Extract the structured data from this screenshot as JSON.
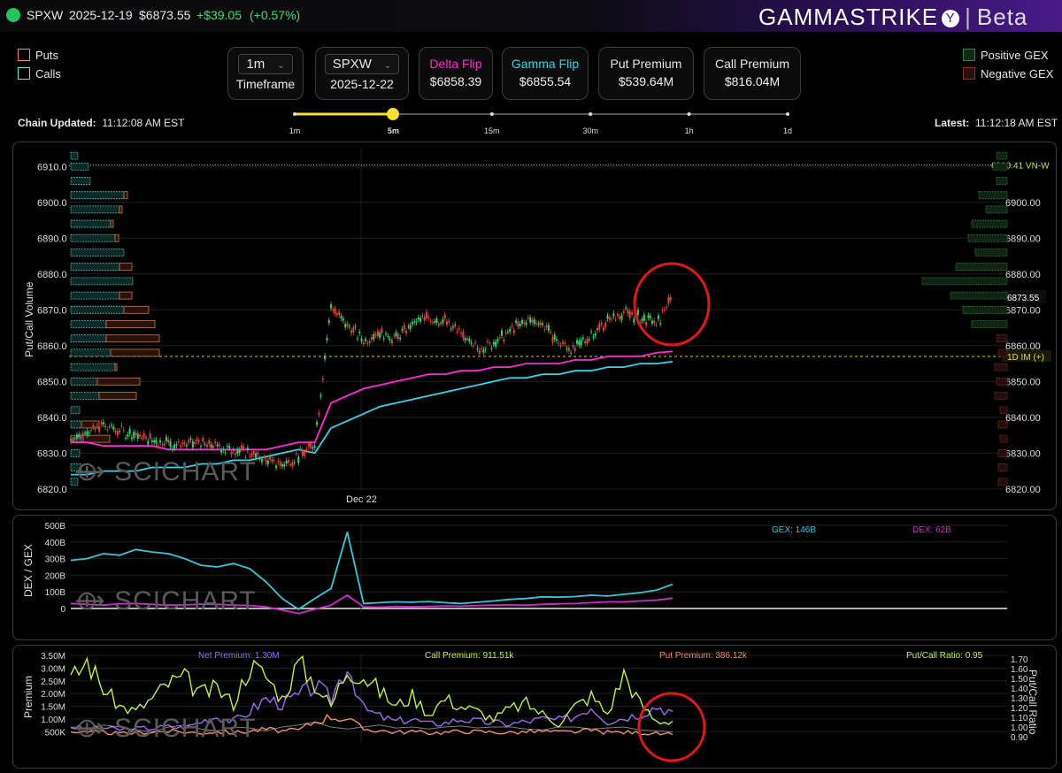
{
  "ticker": {
    "symbol": "SPXW",
    "date": "2025-12-19",
    "price": "$6873.55",
    "change": "+$39.05",
    "change_pct": "(+0.57%)"
  },
  "brand": {
    "name": "GAMMASTRIKE",
    "suffix": "Beta"
  },
  "legend_left": [
    {
      "label": "Puts",
      "color": "#f08a5d"
    },
    {
      "label": "Calls",
      "color": "#7ee0d8"
    }
  ],
  "legend_right": [
    {
      "label": "Positive GEX",
      "color": "#1f6b2a"
    },
    {
      "label": "Negative GEX",
      "color": "#6b1f1f"
    }
  ],
  "controls": {
    "timeframe": {
      "value": "1m",
      "label": "Timeframe"
    },
    "symbol": {
      "value": "SPXW",
      "date": "2025-12-22"
    },
    "delta_flip": {
      "label": "Delta Flip",
      "value": "$6858.39",
      "color": "#ff2bd6"
    },
    "gamma_flip": {
      "label": "Gamma Flip",
      "value": "$6855.54",
      "color": "#37d3e6"
    },
    "put_premium": {
      "label": "Put Premium",
      "value": "$539.64M"
    },
    "call_premium": {
      "label": "Call Premium",
      "value": "$816.04M"
    }
  },
  "chain": {
    "label": "Chain Updated:",
    "time": "11:12:08 AM EST"
  },
  "latest": {
    "label": "Latest:",
    "time": "11:12:18 AM EST"
  },
  "slider": {
    "ticks": [
      "1m",
      "5m",
      "15m",
      "30m",
      "1h",
      "1d"
    ],
    "selected_index": 1,
    "accent": "#f5e033"
  },
  "price_chart": {
    "ylabel": "Put/Call Volume",
    "yticks_left": [
      "6910.0",
      "6900.0",
      "6890.0",
      "6880.0",
      "6870.0",
      "6860.0",
      "6850.0",
      "6840.0",
      "6830.0",
      "6820.0"
    ],
    "yticks_right": [
      "6900.00",
      "6890.00",
      "6880.00",
      "6870.00",
      "6860.00",
      "6850.00",
      "6840.00",
      "6830.00",
      "6820.00"
    ],
    "xtick": "Dec 22",
    "vnw_label": "6910.41 VN-W",
    "price_label": "6873.55",
    "im_label": "1D IM (+)",
    "watermark": "SCICHART"
  },
  "gex_chart": {
    "ylabel": "DEX / GEX",
    "yticks": [
      "500B",
      "400B",
      "300B",
      "200B",
      "100B",
      "0"
    ],
    "gex_label": "GEX: 146B",
    "dex_label": "DEX: 62B",
    "watermark": "SCICHART"
  },
  "premium_chart": {
    "ylabel_left": "Premium",
    "ylabel_right": "Put/Call Ratio",
    "yticks_left": [
      "3.50M",
      "3.00M",
      "2.50M",
      "2.00M",
      "1.50M",
      "1.00M",
      "500K"
    ],
    "yticks_right": [
      "1.70",
      "1.60",
      "1.50",
      "1.40",
      "1.30",
      "1.20",
      "1.10",
      "1.00",
      "0.90"
    ],
    "net_label": "Net Premium: 1.30M",
    "call_label": "Call Premium: 911.51k",
    "put_label": "Put Premium: 386.12k",
    "ratio_label": "Put/Call Ratio: 0.95",
    "watermark": "SCICHART"
  },
  "chart_data": [
    {
      "type": "line",
      "title": "",
      "ylabel": "Put/Call Volume",
      "ylim": [
        6817,
        6915
      ],
      "x_labels": [
        "Dec 22"
      ],
      "series": [
        {
          "name": "",
          "color": "#e6e6e6",
          "values": [
            6834,
            6836,
            6838,
            6836,
            6835,
            6834,
            6833,
            6832,
            6833,
            6832,
            6831,
            6830,
            6828,
            6827,
            6829,
            6833,
            6871,
            6866,
            6861,
            6864,
            6862,
            6866,
            6868,
            6867,
            6863,
            6859,
            6861,
            6864,
            6867,
            6866,
            6861,
            6859,
            6863,
            6867,
            6869,
            6868,
            6866,
            6873.55
          ]
        },
        {
          "name": "Delta Flip",
          "color": "#ff2bd6",
          "values": [
            6833,
            6833,
            6832,
            6832,
            6832,
            6832,
            6831,
            6831,
            6831,
            6831,
            6831,
            6831,
            6831,
            6832,
            6833,
            6833,
            6844,
            6846,
            6848,
            6849,
            6850,
            6851,
            6852,
            6852,
            6853,
            6853,
            6854,
            6854,
            6855,
            6855,
            6855,
            6856,
            6856,
            6857,
            6857,
            6857,
            6858,
            6858.39
          ]
        },
        {
          "name": "Gamma Flip",
          "color": "#37d3e6",
          "values": [
            6824,
            6824,
            6825,
            6825,
            6825,
            6826,
            6826,
            6826,
            6827,
            6827,
            6828,
            6828,
            6829,
            6830,
            6831,
            6830,
            6837,
            6839,
            6841,
            6843,
            6844,
            6845,
            6846,
            6847,
            6848,
            6849,
            6850,
            6851,
            6851,
            6852,
            6852,
            6853,
            6853,
            6854,
            6854,
            6855,
            6855,
            6855.54
          ]
        }
      ]
    },
    {
      "type": "line",
      "title": "",
      "ylabel": "DEX / GEX",
      "ylim": [
        0,
        500
      ],
      "series": [
        {
          "name": "GEX",
          "color": "#37c8d8",
          "values": [
            290,
            300,
            330,
            320,
            355,
            340,
            330,
            300,
            260,
            250,
            270,
            240,
            160,
            60,
            -5,
            60,
            120,
            460,
            30,
            35,
            40,
            38,
            42,
            35,
            30,
            38,
            45,
            55,
            60,
            70,
            68,
            72,
            80,
            75,
            85,
            95,
            110,
            146
          ]
        },
        {
          "name": "DEX",
          "color": "#d02bd0",
          "values": [
            30,
            25,
            20,
            28,
            30,
            25,
            20,
            22,
            26,
            25,
            20,
            18,
            10,
            -10,
            -30,
            -5,
            20,
            80,
            10,
            8,
            12,
            10,
            12,
            15,
            14,
            18,
            20,
            22,
            20,
            25,
            28,
            30,
            35,
            40,
            40,
            45,
            50,
            62
          ]
        }
      ]
    },
    {
      "type": "line",
      "title": "",
      "ylabel": "Premium",
      "ylim": [
        300000,
        3500000
      ],
      "series": [
        {
          "name": "Net Premium",
          "color": "#9b6cf0",
          "values": [
            700000,
            600000,
            650000,
            580000,
            620000,
            640000,
            700000,
            650000,
            900000,
            1100000,
            900000,
            1300000,
            1800000,
            1600000,
            1900000,
            2300000,
            1800000,
            3200000,
            1400000,
            1100000,
            900000,
            1000000,
            800000,
            850000,
            1000000,
            900000,
            850000,
            800000,
            900000,
            1000000,
            950000,
            1100000,
            1500000,
            900000,
            1050000,
            1200000,
            1500000,
            1300000
          ]
        },
        {
          "name": "Call Premium",
          "color": "#bff14a",
          "values": [
            2500000,
            3300000,
            2200000,
            1500000,
            1300000,
            1800000,
            2400000,
            2600000,
            2000000,
            2200000,
            1600000,
            3100000,
            2700000,
            1800000,
            3200000,
            2400000,
            1500000,
            3000000,
            2700000,
            2100000,
            1500000,
            1900000,
            1200000,
            1800000,
            1500000,
            1300000,
            1000000,
            1400000,
            1600000,
            1200000,
            800000,
            1500000,
            1900000,
            1200000,
            2800000,
            1600000,
            900000,
            911510
          ]
        },
        {
          "name": "Put Premium",
          "color": "#f08f6d",
          "values": [
            500000,
            450000,
            480000,
            420000,
            450000,
            500000,
            520000,
            480000,
            450000,
            500000,
            460000,
            520000,
            600000,
            520000,
            560000,
            900000,
            1100000,
            1000000,
            600000,
            550000,
            480000,
            500000,
            460000,
            470000,
            520000,
            500000,
            480000,
            460000,
            500000,
            520000,
            480000,
            500000,
            550000,
            470000,
            480000,
            460000,
            420000,
            386120
          ]
        },
        {
          "name": "Put/Call Ratio",
          "color": "#d0d0d0",
          "values": [
            1.0,
            0.98,
            1.02,
            1.0,
            0.97,
            0.95,
            1.0,
            1.02,
            0.98,
            0.96,
            1.0,
            0.99,
            0.96,
            1.0,
            1.02,
            1.05,
            1.0,
            0.98,
            1.0,
            1.02,
            0.99,
            1.0,
            0.98,
            1.0,
            1.01,
            0.99,
            1.0,
            1.0,
            0.98,
            0.97,
            1.0,
            1.0,
            0.98,
            0.99,
            1.0,
            0.97,
            0.96,
            0.95
          ]
        }
      ]
    }
  ]
}
